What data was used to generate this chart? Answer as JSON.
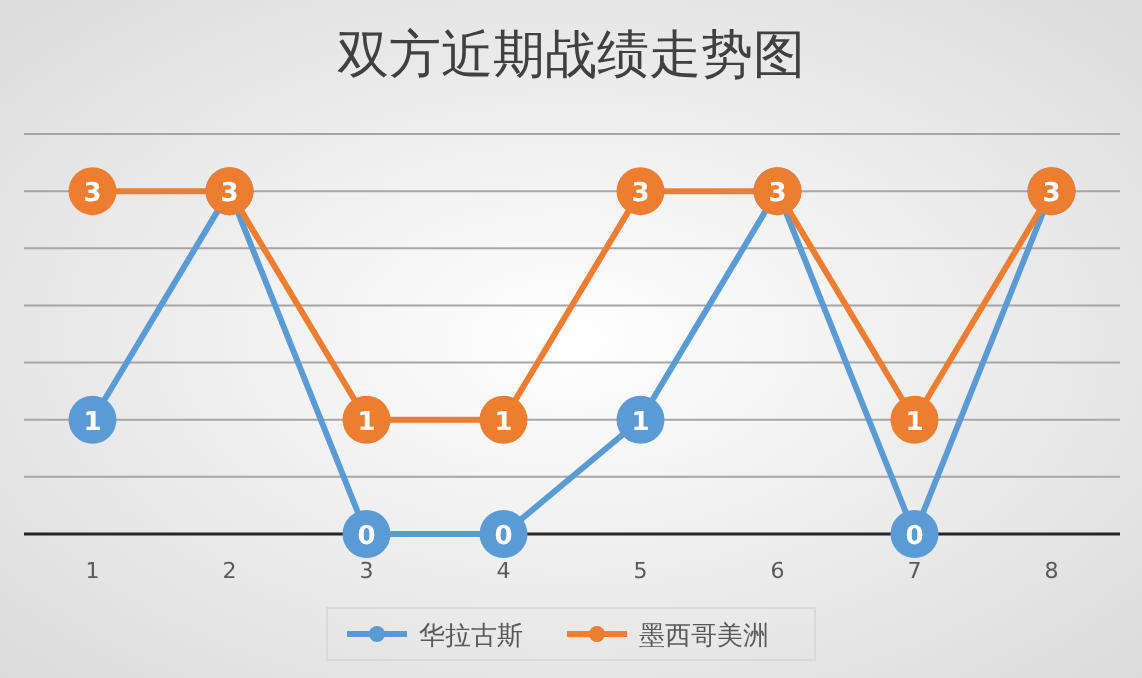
{
  "chart_data": {
    "type": "line",
    "title": "双方近期战绩走势图",
    "categories": [
      "1",
      "2",
      "3",
      "4",
      "5",
      "6",
      "7",
      "8"
    ],
    "series": [
      {
        "name": "华拉古斯",
        "color": "#5b9bd5",
        "values": [
          1,
          3,
          0,
          0,
          1,
          3,
          0,
          3
        ],
        "value_labels": [
          "1",
          null,
          "0",
          "0",
          "1",
          null,
          "0",
          null
        ]
      },
      {
        "name": "墨西哥美洲",
        "color": "#ed7d31",
        "values": [
          3,
          3,
          1,
          1,
          3,
          3,
          1,
          3
        ],
        "value_labels": [
          "3",
          "3",
          "1",
          "1",
          "3",
          "3",
          "1",
          "3"
        ]
      }
    ],
    "ylim": [
      0,
      3.5
    ],
    "yticks": [
      {
        "value": 0,
        "label": null
      },
      {
        "value": 0.5,
        "label": null
      },
      {
        "value": 1,
        "label": null
      },
      {
        "value": 1.5,
        "label": null
      },
      {
        "value": 2,
        "label": null
      },
      {
        "value": 2.5,
        "label": null
      },
      {
        "value": 3,
        "label": null
      },
      {
        "value": 3.5,
        "label": null
      }
    ],
    "tick_labels": "x",
    "grid": "y",
    "legend": "bottom",
    "marker": "circle",
    "line_style": "solid"
  }
}
